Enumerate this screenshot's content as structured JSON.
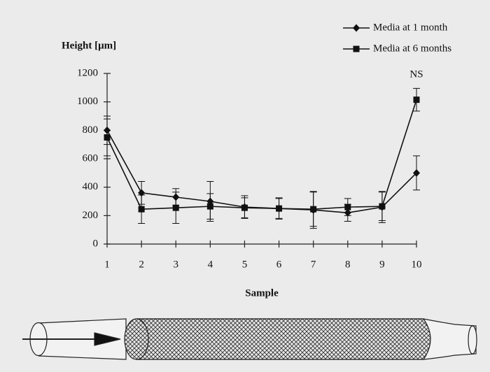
{
  "chart_data": {
    "type": "line",
    "y_label": "Height [μm]",
    "x_label": "Sample",
    "x": [
      1,
      2,
      3,
      4,
      5,
      6,
      7,
      8,
      9,
      10
    ],
    "xlim": [
      1,
      10
    ],
    "xticks": [
      1,
      2,
      3,
      4,
      5,
      6,
      7,
      8,
      9,
      10
    ],
    "ylim": [
      0,
      1200
    ],
    "yticks": [
      0,
      200,
      400,
      600,
      800,
      1000,
      1200
    ],
    "series": [
      {
        "name": "Media at 1 month",
        "color": "#111111",
        "marker": "diamond",
        "values": [
          800,
          360,
          330,
          300,
          260,
          250,
          240,
          220,
          260,
          500
        ],
        "errors": [
          100,
          80,
          60,
          140,
          80,
          75,
          130,
          60,
          110,
          120
        ]
      },
      {
        "name": "Media at 6 months",
        "color": "#111111",
        "marker": "square",
        "values": [
          750,
          245,
          255,
          265,
          255,
          250,
          245,
          260,
          265,
          1015
        ],
        "errors": [
          130,
          100,
          110,
          90,
          70,
          70,
          120,
          60,
          100,
          80
        ]
      }
    ],
    "annotations": [
      {
        "text": "NS",
        "x": 10,
        "y": 1200
      }
    ],
    "legend": "top-right"
  }
}
